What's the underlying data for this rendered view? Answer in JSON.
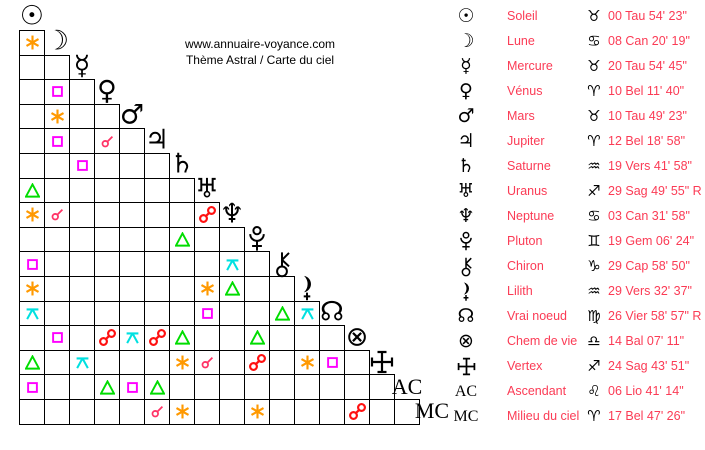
{
  "header": {
    "site": "www.annuaire-voyance.com",
    "subtitle": "Thème Astral / Carte du ciel"
  },
  "text_color": "#fb3b55",
  "aspect_types": {
    "conjunction": {
      "symbol": "☌",
      "color": "#ff3366"
    },
    "sextile": {
      "symbol": "✱",
      "color": "#ff9900"
    },
    "square": {
      "symbol": "□",
      "color": "#ff00ff"
    },
    "trine": {
      "symbol": "△",
      "color": "#00dd00"
    },
    "quincunx": {
      "symbol": "⚻",
      "color": "#00e0e0"
    },
    "opposition": {
      "symbol": "☍",
      "color": "#ff1111"
    }
  },
  "bodies": [
    {
      "id": "soleil",
      "glyph_type": "char",
      "glyph": "☉",
      "name": "Soleil",
      "sign": "Tau",
      "sign_char": "♉",
      "position": "00 Tau 54' 23\"",
      "aspects": {}
    },
    {
      "id": "lune",
      "glyph_type": "char",
      "glyph": "☽",
      "name": "Lune",
      "sign": "Can",
      "sign_char": "♋",
      "position": "08 Can 20' 19\"",
      "aspects": {
        "1": "sextile"
      }
    },
    {
      "id": "mercure",
      "glyph_type": "char",
      "glyph": "☿",
      "name": "Mercure",
      "sign": "Tau",
      "sign_char": "♉",
      "position": "20 Tau 54' 45\"",
      "aspects": {}
    },
    {
      "id": "venus",
      "glyph_type": "char",
      "glyph": "♀",
      "name": "Vénus",
      "sign": "Bel",
      "sign_char": "♈",
      "position": "10 Bel 11' 40\"",
      "aspects": {
        "2": "square"
      }
    },
    {
      "id": "mars",
      "glyph_type": "char",
      "glyph": "♂",
      "name": "Mars",
      "sign": "Tau",
      "sign_char": "♉",
      "position": "10 Tau 49' 23\"",
      "aspects": {
        "2": "sextile"
      }
    },
    {
      "id": "jupiter",
      "glyph_type": "char",
      "glyph": "♃",
      "name": "Jupiter",
      "sign": "Bel",
      "sign_char": "♈",
      "position": "12 Bel 18' 58\"",
      "aspects": {
        "2": "square",
        "4": "conjunction"
      }
    },
    {
      "id": "saturne",
      "glyph_type": "char",
      "glyph": "♄",
      "name": "Saturne",
      "sign": "Vers",
      "sign_char": "♒",
      "position": "19 Vers 41' 58\"",
      "aspects": {
        "3": "square"
      }
    },
    {
      "id": "uranus",
      "glyph_type": "char",
      "glyph": "♅",
      "name": "Uranus",
      "sign": "Sag",
      "sign_char": "♐",
      "position": "29 Sag 49' 55\" R",
      "aspects": {
        "1": "trine"
      }
    },
    {
      "id": "neptune",
      "glyph_type": "char",
      "glyph": "♆",
      "name": "Neptune",
      "sign": "Can",
      "sign_char": "♋",
      "position": "03 Can 31' 58\"",
      "aspects": {
        "1": "sextile",
        "2": "conjunction",
        "8": "opposition"
      }
    },
    {
      "id": "pluton",
      "glyph_type": "svg",
      "glyph": "pluto-icon",
      "name": "Pluton",
      "sign": "Gem",
      "sign_char": "♊",
      "position": "19 Gem 06' 24\"",
      "aspects": {
        "7": "trine"
      }
    },
    {
      "id": "chiron",
      "glyph_type": "svg",
      "glyph": "chiron-icon",
      "name": "Chiron",
      "sign": "Cap",
      "sign_char": "♑",
      "position": "29 Cap 58' 50\"",
      "aspects": {
        "1": "square",
        "9": "quincunx"
      }
    },
    {
      "id": "lilith",
      "glyph_type": "svg",
      "glyph": "lilith-icon",
      "name": "Lilith",
      "sign": "Vers",
      "sign_char": "♒",
      "position": "29 Vers 32' 37\"",
      "aspects": {
        "1": "sextile",
        "8": "sextile",
        "9": "trine"
      }
    },
    {
      "id": "vrai-noeud",
      "glyph_type": "char",
      "glyph": "☊",
      "name": "Vrai noeud",
      "sign": "Vier",
      "sign_char": "♍",
      "position": "26 Vier 58' 57\" R",
      "aspects": {
        "1": "quincunx",
        "8": "square",
        "11": "trine",
        "12": "quincunx"
      }
    },
    {
      "id": "chem-de-vie",
      "glyph_type": "char",
      "glyph": "⊗",
      "name": "Chem de vie",
      "sign": "Bal",
      "sign_char": "♎",
      "position": "14 Bal 07' 11\"",
      "aspects": {
        "2": "square",
        "4": "opposition",
        "5": "quincunx",
        "6": "opposition",
        "7": "trine",
        "10": "trine"
      }
    },
    {
      "id": "vertex",
      "glyph_type": "svg",
      "glyph": "vertex-icon",
      "name": "Vertex",
      "sign": "Sag",
      "sign_char": "♐",
      "position": "24 Sag 43' 51\"",
      "aspects": {
        "1": "trine",
        "3": "quincunx",
        "7": "sextile",
        "8": "conjunction",
        "10": "opposition",
        "12": "sextile",
        "13": "square"
      }
    },
    {
      "id": "ascendant",
      "glyph_type": "text",
      "glyph": "AC",
      "name": "Ascendant",
      "sign": "Lio",
      "sign_char": "♌",
      "position": "06 Lio 41' 14\"",
      "aspects": {
        "1": "square",
        "4": "trine",
        "5": "square",
        "6": "trine"
      }
    },
    {
      "id": "milieu-du-ciel",
      "glyph_type": "text",
      "glyph": "MC",
      "name": "Milieu du ciel",
      "sign": "Bel",
      "sign_char": "♈",
      "position": "17 Bel 47' 26\"",
      "aspects": {
        "6": "conjunction",
        "7": "sextile",
        "10": "sextile",
        "14": "opposition"
      }
    }
  ]
}
